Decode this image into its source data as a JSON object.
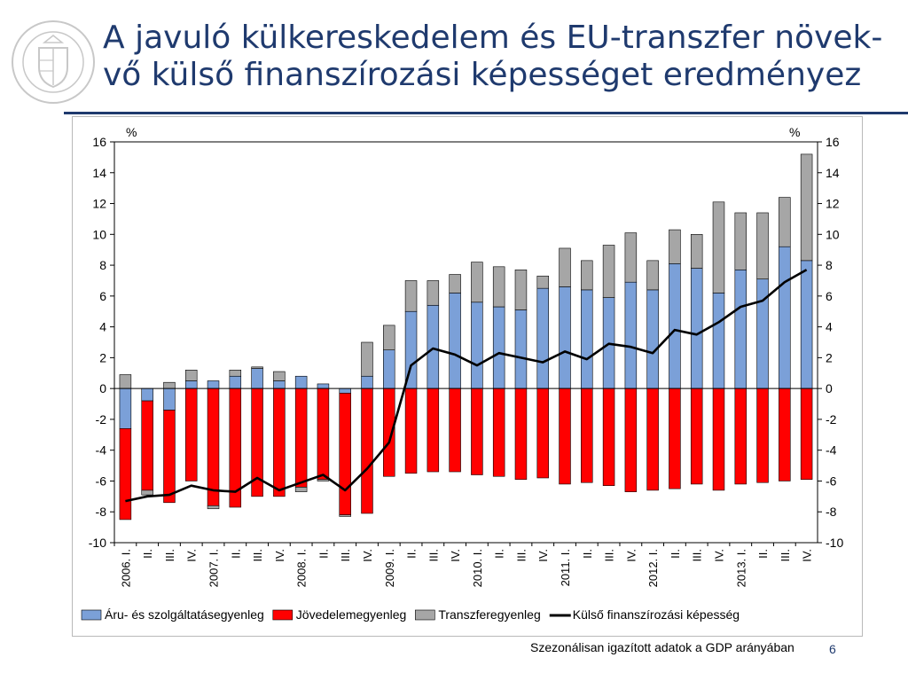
{
  "header": {
    "title_lines": [
      "A javuló külkereskedelem és EU-transzfer növek-",
      "vő külső finanszírozási képességet eredményez"
    ],
    "logo_name": "mnb-seal-icon",
    "colors": {
      "title": "#1f3a6e",
      "rule": "#1f3a6e"
    }
  },
  "chart_data": {
    "type": "bar",
    "y_unit_left": "%",
    "y_unit_right": "%",
    "ylim": [
      -10,
      16
    ],
    "y_ticks": [
      16,
      14,
      12,
      10,
      8,
      6,
      4,
      2,
      0,
      -2,
      -4,
      -6,
      -8,
      -10
    ],
    "grid": false,
    "legend_position": "bottom",
    "categories": [
      "2006. I.",
      "II.",
      "III.",
      "IV.",
      "2007. I.",
      "II.",
      "III.",
      "IV.",
      "2008. I.",
      "II.",
      "III.",
      "IV.",
      "2009. I.",
      "II.",
      "III.",
      "IV.",
      "2010. I.",
      "II.",
      "III.",
      "IV.",
      "2011. I.",
      "II.",
      "III.",
      "IV.",
      "2012. I.",
      "II.",
      "III.",
      "IV.",
      "2013. I.",
      "II.",
      "III.",
      "IV."
    ],
    "series": [
      {
        "name": "Áru- és szolgáltatásegyenleg",
        "kind": "bar",
        "color": "#7ba0d8",
        "values": [
          -2.6,
          -0.8,
          -1.4,
          0.5,
          0.5,
          0.8,
          1.3,
          0.5,
          0.8,
          0.3,
          -0.3,
          0.8,
          2.5,
          5.0,
          5.4,
          6.2,
          5.6,
          5.3,
          5.1,
          6.5,
          6.6,
          6.4,
          5.9,
          6.9,
          6.4,
          8.1,
          7.8,
          6.2,
          7.7,
          7.1,
          9.2,
          8.3
        ]
      },
      {
        "name": "Jövedelemegyenleg",
        "kind": "bar",
        "color": "#ff0000",
        "values": [
          -5.9,
          -5.8,
          -6.0,
          -6.0,
          -7.6,
          -7.7,
          -7.0,
          -7.0,
          -6.4,
          -5.9,
          -7.9,
          -8.1,
          -5.7,
          -5.5,
          -5.4,
          -5.4,
          -5.6,
          -5.7,
          -5.9,
          -5.8,
          -6.2,
          -6.1,
          -6.3,
          -6.7,
          -6.6,
          -6.5,
          -6.2,
          -6.6,
          -6.2,
          -6.1,
          -6.0,
          -5.9
        ]
      },
      {
        "name": "Transzferegyenleg",
        "kind": "bar",
        "color": "#a6a6a6",
        "values": [
          0.9,
          -0.3,
          0.4,
          0.7,
          -0.2,
          0.4,
          0.1,
          0.6,
          -0.3,
          -0.1,
          -0.1,
          2.2,
          1.6,
          2.0,
          1.6,
          1.2,
          2.6,
          2.6,
          2.6,
          0.8,
          2.5,
          1.9,
          3.4,
          3.2,
          1.9,
          2.2,
          2.2,
          5.9,
          3.7,
          4.3,
          3.2,
          6.9
        ]
      },
      {
        "name": "Külső finanszírozási képesség",
        "kind": "line",
        "color": "#000000",
        "values": [
          -7.3,
          -7.0,
          -6.9,
          -6.3,
          -6.6,
          -6.7,
          -5.8,
          -6.6,
          -6.1,
          -5.6,
          -6.6,
          -5.2,
          -3.5,
          1.5,
          2.6,
          2.2,
          1.5,
          2.3,
          2.0,
          1.7,
          2.4,
          1.9,
          2.9,
          2.7,
          2.3,
          3.8,
          3.5,
          4.3,
          5.3,
          5.7,
          6.9,
          7.7
        ]
      }
    ]
  },
  "footer": {
    "note": "Szezonálisan igazított adatok a GDP arányában",
    "page": "6"
  }
}
